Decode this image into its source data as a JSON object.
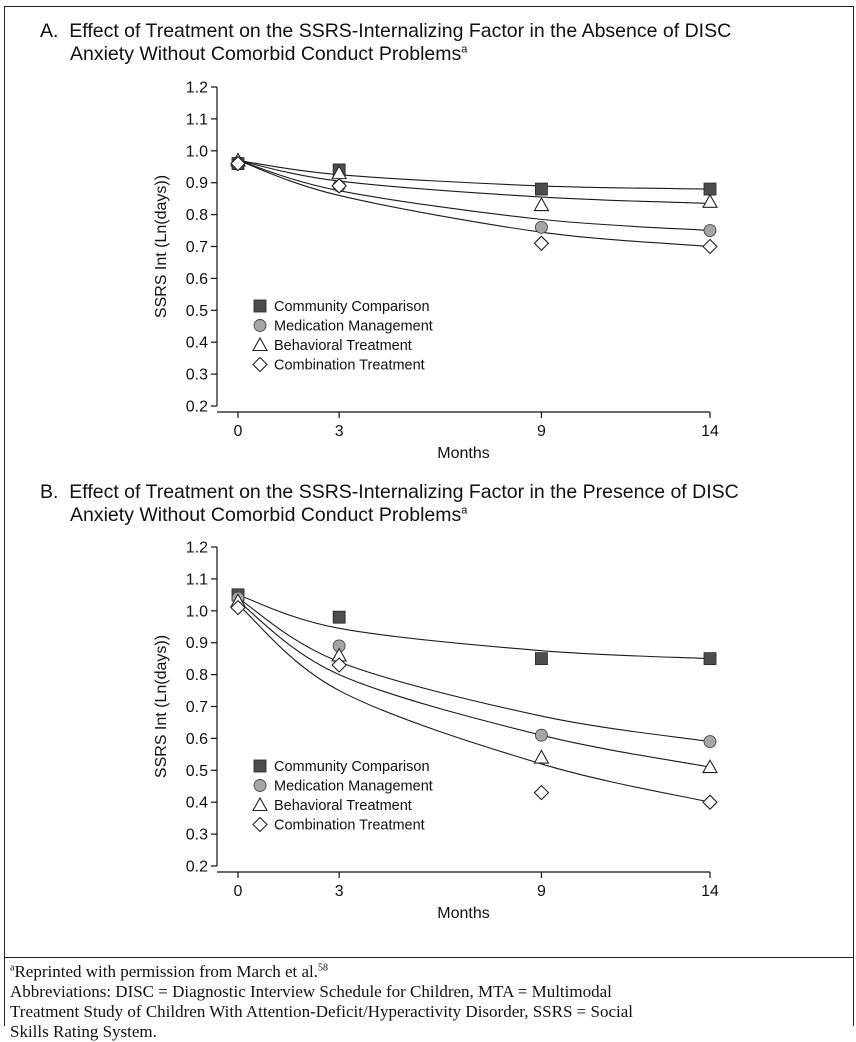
{
  "panels": [
    {
      "title_line1": "A.  Effect of Treatment on the SSRS-Internalizing Factor in the Absence of DISC",
      "title_line2": "Anxiety Without Comorbid Conduct Problems",
      "title_sup": "a"
    },
    {
      "title_line1": "B.  Effect of Treatment on the SSRS-Internalizing Factor in the Presence of DISC",
      "title_line2": "Anxiety Without Comorbid Conduct Problems",
      "title_sup": "a"
    }
  ],
  "chart_data": [
    {
      "type": "scatter",
      "title": "Effect of Treatment on the SSRS-Internalizing Factor in the Absence of DISC Anxiety Without Comorbid Conduct Problems",
      "xlabel": "Months",
      "ylabel": "SSRS Int (Ln(days))",
      "x_ticks": [
        0,
        3,
        9,
        14
      ],
      "y_ticks": [
        "0.2",
        "0.3",
        "0.4",
        "0.5",
        "0.6",
        "0.7",
        "0.8",
        "0.9",
        "1.0",
        "1.1",
        "1.2"
      ],
      "xlim": [
        0,
        14
      ],
      "ylim": [
        0.2,
        1.2
      ],
      "grid": false,
      "legend_position": "lower-left",
      "series": [
        {
          "name": "Community Comparison",
          "marker": "filled-square",
          "color": "#4d4d4d",
          "x": [
            0,
            3,
            9,
            14
          ],
          "y": [
            0.96,
            0.94,
            0.88,
            0.88
          ],
          "fit": [
            0.97,
            0.925,
            0.89,
            0.88
          ]
        },
        {
          "name": "Medication Management",
          "marker": "filled-circle",
          "color": "#999999",
          "x": [
            0,
            3,
            9,
            14
          ],
          "y": [
            0.96,
            0.89,
            0.76,
            0.75
          ],
          "fit": [
            0.97,
            0.875,
            0.785,
            0.75
          ]
        },
        {
          "name": "Behavioral Treatment",
          "marker": "open-triangle",
          "color": "#333333",
          "x": [
            0,
            3,
            9,
            14
          ],
          "y": [
            0.97,
            0.93,
            0.83,
            0.84
          ],
          "fit": [
            0.97,
            0.905,
            0.855,
            0.835
          ]
        },
        {
          "name": "Combination Treatment",
          "marker": "open-diamond",
          "color": "#333333",
          "x": [
            0,
            3,
            9,
            14
          ],
          "y": [
            0.96,
            0.89,
            0.71,
            0.7
          ],
          "fit": [
            0.97,
            0.86,
            0.745,
            0.7
          ]
        }
      ]
    },
    {
      "type": "scatter",
      "title": "Effect of Treatment on the SSRS-Internalizing Factor in the Presence of DISC Anxiety Without Comorbid Conduct Problems",
      "xlabel": "Months",
      "ylabel": "SSRS Int (Ln(days))",
      "x_ticks": [
        0,
        3,
        9,
        14
      ],
      "y_ticks": [
        "0.2",
        "0.3",
        "0.4",
        "0.5",
        "0.6",
        "0.7",
        "0.8",
        "0.9",
        "1.0",
        "1.1",
        "1.2"
      ],
      "xlim": [
        0,
        14
      ],
      "ylim": [
        0.2,
        1.2
      ],
      "grid": false,
      "legend_position": "lower-left",
      "series": [
        {
          "name": "Community Comparison",
          "marker": "filled-square",
          "color": "#4d4d4d",
          "x": [
            0,
            3,
            9,
            14
          ],
          "y": [
            1.05,
            0.98,
            0.85,
            0.85
          ],
          "fit": [
            1.05,
            0.945,
            0.875,
            0.85
          ]
        },
        {
          "name": "Medication Management",
          "marker": "filled-circle",
          "color": "#999999",
          "x": [
            0,
            3,
            9,
            14
          ],
          "y": [
            1.04,
            0.89,
            0.61,
            0.59
          ],
          "fit": [
            1.04,
            0.84,
            0.67,
            0.59
          ]
        },
        {
          "name": "Behavioral Treatment",
          "marker": "open-triangle",
          "color": "#333333",
          "x": [
            0,
            3,
            9,
            14
          ],
          "y": [
            1.03,
            0.86,
            0.54,
            0.51
          ],
          "fit": [
            1.03,
            0.8,
            0.61,
            0.51
          ]
        },
        {
          "name": "Combination Treatment",
          "marker": "open-diamond",
          "color": "#333333",
          "x": [
            0,
            3,
            9,
            14
          ],
          "y": [
            1.01,
            0.83,
            0.43,
            0.4
          ],
          "fit": [
            1.02,
            0.75,
            0.52,
            0.4
          ]
        }
      ]
    }
  ],
  "footnote": {
    "sup": "a",
    "reprint_text": "Reprinted with permission from March et al.",
    "reprint_ref": "58",
    "abbreviations_line1": "Abbreviations: DISC = Diagnostic Interview Schedule for Children, MTA = Multimodal",
    "abbreviations_line2": "Treatment Study of Children With Attention-Deficit/Hyperactivity Disorder, SSRS = Social",
    "abbreviations_line3": "Skills Rating System."
  }
}
